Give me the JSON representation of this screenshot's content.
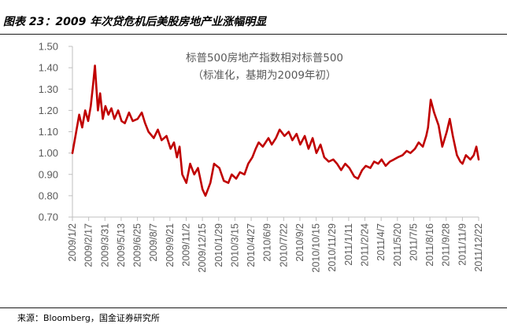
{
  "header": {
    "title": "图表 23：2009 年次贷危机后美股房地产业涨幅明显"
  },
  "footer": {
    "source": "来源：Bloomberg，国金证券研究所"
  },
  "colors": {
    "series": "#c00000",
    "axis": "#bfbfbf",
    "tick_text": "#595959"
  },
  "chart_data": {
    "type": "line",
    "title": "",
    "annotation": [
      "标普500房地产指数相对标普500",
      "（标准化，基期为2009年初）"
    ],
    "xlabel": "",
    "ylabel": "",
    "ylim": [
      0.7,
      1.5
    ],
    "yticks": [
      "0.70",
      "0.80",
      "0.90",
      "1.00",
      "1.10",
      "1.20",
      "1.30",
      "1.40",
      "1.50"
    ],
    "grid": false,
    "legend": "none",
    "xticks": [
      "2009/1/2",
      "2009/2/17",
      "2009/3/31",
      "2009/5/13",
      "2009/6/25",
      "2009/8/7",
      "2009/9/21",
      "2009/11/2",
      "2009/12/15",
      "2010/1/29",
      "2010/3/15",
      "2010/4/27",
      "2010/6/9",
      "2010/7/22",
      "2010/9/2",
      "2010/10/15",
      "2010/11/29",
      "2011/1/11",
      "2011/2/24",
      "2011/4/7",
      "2011/5/20",
      "2011/7/5",
      "2011/8/16",
      "2011/9/28",
      "2011/11/9",
      "2011/12/22"
    ],
    "x": [
      "2009-01-02",
      "2009-01-12",
      "2009-01-20",
      "2009-01-28",
      "2009-02-05",
      "2009-02-13",
      "2009-02-20",
      "2009-02-26",
      "2009-03-03",
      "2009-03-06",
      "2009-03-11",
      "2009-03-17",
      "2009-03-24",
      "2009-03-31",
      "2009-04-08",
      "2009-04-16",
      "2009-04-24",
      "2009-05-04",
      "2009-05-13",
      "2009-05-22",
      "2009-06-02",
      "2009-06-12",
      "2009-06-25",
      "2009-07-06",
      "2009-07-15",
      "2009-07-24",
      "2009-08-07",
      "2009-08-18",
      "2009-08-28",
      "2009-09-10",
      "2009-09-21",
      "2009-09-30",
      "2009-10-08",
      "2009-10-15",
      "2009-10-22",
      "2009-11-02",
      "2009-11-12",
      "2009-11-23",
      "2009-12-03",
      "2009-12-15",
      "2009-12-23",
      "2010-01-05",
      "2010-01-15",
      "2010-01-29",
      "2010-02-10",
      "2010-02-22",
      "2010-03-03",
      "2010-03-15",
      "2010-03-25",
      "2010-04-06",
      "2010-04-16",
      "2010-04-27",
      "2010-05-06",
      "2010-05-14",
      "2010-05-25",
      "2010-06-09",
      "2010-06-18",
      "2010-06-29",
      "2010-07-09",
      "2010-07-22",
      "2010-08-02",
      "2010-08-12",
      "2010-08-23",
      "2010-09-02",
      "2010-09-14",
      "2010-09-24",
      "2010-10-05",
      "2010-10-15",
      "2010-10-26",
      "2010-11-05",
      "2010-11-17",
      "2010-11-29",
      "2010-12-09",
      "2010-12-20",
      "2010-12-31",
      "2011-01-11",
      "2011-01-24",
      "2011-02-03",
      "2011-02-14",
      "2011-02-24",
      "2011-03-08",
      "2011-03-18",
      "2011-03-29",
      "2011-04-07",
      "2011-04-18",
      "2011-04-29",
      "2011-05-10",
      "2011-05-20",
      "2011-06-02",
      "2011-06-13",
      "2011-06-23",
      "2011-07-05",
      "2011-07-15",
      "2011-07-26",
      "2011-08-04",
      "2011-08-09",
      "2011-08-16",
      "2011-08-25",
      "2011-09-06",
      "2011-09-16",
      "2011-09-28",
      "2011-10-06",
      "2011-10-14",
      "2011-10-25",
      "2011-11-03",
      "2011-11-09",
      "2011-11-18",
      "2011-11-30",
      "2011-12-09",
      "2011-12-16",
      "2011-12-22"
    ],
    "series": [
      {
        "name": "",
        "color": "#c00000",
        "values": [
          1.0,
          1.1,
          1.18,
          1.12,
          1.2,
          1.15,
          1.22,
          1.32,
          1.41,
          1.33,
          1.2,
          1.28,
          1.16,
          1.22,
          1.18,
          1.21,
          1.16,
          1.2,
          1.15,
          1.14,
          1.19,
          1.15,
          1.16,
          1.19,
          1.14,
          1.1,
          1.07,
          1.11,
          1.06,
          1.08,
          1.02,
          1.05,
          0.98,
          1.03,
          0.9,
          0.86,
          0.95,
          0.9,
          0.93,
          0.83,
          0.8,
          0.86,
          0.95,
          0.93,
          0.87,
          0.86,
          0.9,
          0.88,
          0.91,
          0.9,
          0.95,
          0.98,
          1.02,
          1.05,
          1.03,
          1.07,
          1.04,
          1.07,
          1.11,
          1.08,
          1.1,
          1.06,
          1.09,
          1.04,
          1.08,
          1.02,
          1.07,
          1.0,
          1.04,
          0.98,
          0.96,
          0.97,
          0.95,
          0.92,
          0.95,
          0.93,
          0.89,
          0.88,
          0.92,
          0.94,
          0.93,
          0.96,
          0.95,
          0.97,
          0.94,
          0.96,
          0.97,
          0.98,
          0.99,
          1.01,
          1.0,
          1.02,
          1.05,
          1.03,
          1.08,
          1.12,
          1.25,
          1.19,
          1.13,
          1.03,
          1.1,
          1.16,
          1.08,
          0.99,
          0.96,
          0.95,
          0.99,
          0.97,
          0.99,
          1.03,
          0.97
        ]
      }
    ]
  }
}
